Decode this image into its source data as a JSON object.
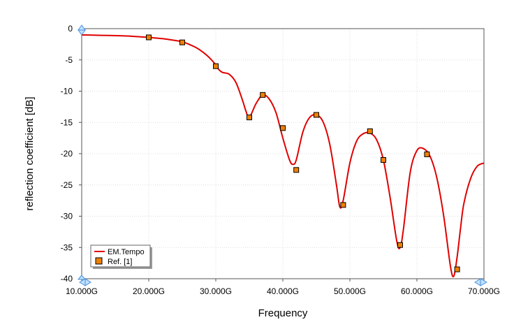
{
  "chart_data": {
    "type": "line",
    "xlabel": "Frequency",
    "ylabel": "reflection coefficient [dB]",
    "xlim": [
      10,
      70
    ],
    "ylim": [
      -40,
      0
    ],
    "x_ticks": [
      {
        "value": 10,
        "label": "10.000G"
      },
      {
        "value": 20,
        "label": "20.000G"
      },
      {
        "value": 30,
        "label": "30.000G"
      },
      {
        "value": 40,
        "label": "40.000G"
      },
      {
        "value": 50,
        "label": "50.000G"
      },
      {
        "value": 60,
        "label": "60.000G"
      },
      {
        "value": 70,
        "label": "70.000G"
      }
    ],
    "y_ticks": [
      {
        "value": 0,
        "label": "0"
      },
      {
        "value": -5,
        "label": "-5"
      },
      {
        "value": -10,
        "label": "-10"
      },
      {
        "value": -15,
        "label": "-15"
      },
      {
        "value": -20,
        "label": "-20"
      },
      {
        "value": -25,
        "label": "-25"
      },
      {
        "value": -30,
        "label": "-30"
      },
      {
        "value": -35,
        "label": "-35"
      },
      {
        "value": -40,
        "label": "-40"
      }
    ],
    "grid": true,
    "legend_position": "bottom-left",
    "series": [
      {
        "name": "EM.Tempo",
        "kind": "line",
        "color": "#e00000",
        "x": [
          10,
          12,
          14,
          16,
          18,
          20,
          22,
          24,
          25,
          26,
          27,
          28,
          29,
          30,
          30.5,
          31,
          32,
          33,
          34,
          34.5,
          35,
          36,
          37,
          38,
          39,
          40,
          41,
          41.5,
          42,
          43,
          44,
          45,
          46,
          47,
          48,
          48.5,
          49,
          50,
          51,
          52,
          53,
          54,
          55,
          56,
          57,
          57.5,
          58,
          59,
          60,
          61,
          62,
          63,
          64,
          65,
          65.5,
          66,
          66.5,
          67,
          68,
          69,
          70
        ],
        "y": [
          -1.0,
          -1.05,
          -1.1,
          -1.15,
          -1.25,
          -1.4,
          -1.6,
          -1.9,
          -2.1,
          -2.5,
          -3.0,
          -3.7,
          -4.6,
          -5.8,
          -6.6,
          -7.0,
          -7.3,
          -8.6,
          -11.5,
          -13.2,
          -14.2,
          -12.0,
          -10.6,
          -11.3,
          -13.5,
          -17.5,
          -21.0,
          -21.7,
          -21.0,
          -16.5,
          -14.2,
          -13.8,
          -14.9,
          -18.5,
          -25.0,
          -28.5,
          -27.5,
          -21.5,
          -18.0,
          -16.8,
          -16.7,
          -17.8,
          -21.0,
          -27.0,
          -34.0,
          -35.0,
          -32.0,
          -23.0,
          -19.5,
          -19.2,
          -20.5,
          -24.0,
          -30.0,
          -38.0,
          -39.6,
          -36.5,
          -32.0,
          -28.0,
          -24.0,
          -22.0,
          -21.5
        ]
      },
      {
        "name": "Ref. [1]",
        "kind": "marker",
        "color": "#f08000",
        "x": [
          20,
          25,
          30,
          35,
          37,
          40,
          42,
          45,
          49,
          53,
          55,
          57.5,
          61.5,
          66
        ],
        "y": [
          -1.4,
          -2.2,
          -6.0,
          -14.2,
          -10.6,
          -15.9,
          -22.6,
          -13.8,
          -28.2,
          -16.4,
          -21.0,
          -34.6,
          -20.1,
          -38.5
        ]
      }
    ]
  }
}
